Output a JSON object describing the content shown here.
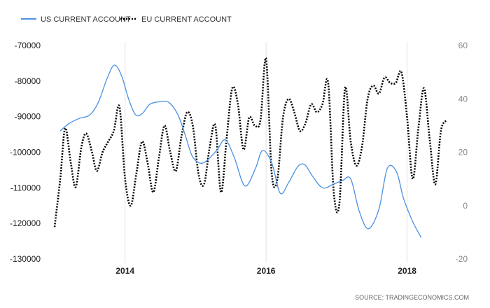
{
  "chart_data": {
    "type": "line",
    "legend_position": "top-left",
    "grid": {
      "horizontal": false,
      "vertical": true
    },
    "source": "SOURCE: TRADINGECONOMICS.COM",
    "x_axis": {
      "range": [
        2013.0,
        2018.6
      ],
      "ticks": [
        {
          "value": 2014,
          "label": "2014"
        },
        {
          "value": 2016,
          "label": "2016"
        },
        {
          "value": 2018,
          "label": "2018"
        }
      ],
      "gridlines": [
        2014,
        2016,
        2018
      ]
    },
    "y_left": {
      "range": [
        -130000,
        -70000
      ],
      "ticks": [
        {
          "value": -70000,
          "label": "-70000"
        },
        {
          "value": -80000,
          "label": "-80000"
        },
        {
          "value": -90000,
          "label": "-90000"
        },
        {
          "value": -100000,
          "label": "-100000"
        },
        {
          "value": -110000,
          "label": "-110000"
        },
        {
          "value": -120000,
          "label": "-120000"
        },
        {
          "value": -130000,
          "label": "-130000"
        }
      ]
    },
    "y_right": {
      "range": [
        -20,
        60
      ],
      "ticks": [
        {
          "value": 60,
          "label": "60"
        },
        {
          "value": 40,
          "label": "40"
        },
        {
          "value": 20,
          "label": "20"
        },
        {
          "value": 0,
          "label": "0"
        },
        {
          "value": -20,
          "label": "-20"
        }
      ]
    },
    "series": [
      {
        "name": "US CURRENT ACCOUNT",
        "axis": "left",
        "color": "#4a90e2",
        "style": "solid",
        "x": [
          2013.08,
          2013.2,
          2013.35,
          2013.5,
          2013.62,
          2013.75,
          2013.85,
          2013.95,
          2014.05,
          2014.15,
          2014.25,
          2014.35,
          2014.5,
          2014.62,
          2014.75,
          2014.85,
          2014.95,
          2015.05,
          2015.15,
          2015.3,
          2015.42,
          2015.55,
          2015.7,
          2015.85,
          2015.95,
          2016.08,
          2016.2,
          2016.32,
          2016.45,
          2016.55,
          2016.65,
          2016.8,
          2016.95,
          2017.08,
          2017.2,
          2017.32,
          2017.45,
          2017.6,
          2017.72,
          2017.85,
          2017.95,
          2018.08,
          2018.2
        ],
        "values": [
          -94000,
          -92000,
          -90500,
          -89500,
          -86000,
          -79000,
          -75500,
          -78500,
          -85000,
          -89500,
          -89000,
          -86500,
          -85800,
          -86000,
          -89500,
          -95000,
          -101000,
          -103000,
          -102500,
          -99500,
          -96500,
          -101500,
          -109500,
          -104500,
          -99500,
          -103000,
          -111500,
          -108500,
          -104000,
          -103500,
          -106500,
          -110000,
          -109000,
          -108000,
          -107500,
          -116500,
          -121500,
          -116000,
          -104500,
          -105500,
          -113000,
          -119500,
          -124000
        ]
      },
      {
        "name": "EU CURRENT ACCOUNT",
        "axis": "right",
        "color": "#000000",
        "style": "dotted",
        "x": [
          2013.0,
          2013.08,
          2013.15,
          2013.23,
          2013.3,
          2013.38,
          2013.45,
          2013.53,
          2013.6,
          2013.68,
          2013.76,
          2013.84,
          2013.92,
          2014.0,
          2014.08,
          2014.16,
          2014.24,
          2014.32,
          2014.4,
          2014.48,
          2014.56,
          2014.64,
          2014.72,
          2014.8,
          2014.88,
          2014.96,
          2015.04,
          2015.12,
          2015.2,
          2015.28,
          2015.36,
          2015.44,
          2015.52,
          2015.6,
          2015.68,
          2015.76,
          2015.84,
          2015.92,
          2016.0,
          2016.08,
          2016.16,
          2016.24,
          2016.32,
          2016.4,
          2016.48,
          2016.56,
          2016.64,
          2016.72,
          2016.8,
          2016.88,
          2016.96,
          2017.04,
          2017.12,
          2017.2,
          2017.28,
          2017.36,
          2017.44,
          2017.52,
          2017.6,
          2017.68,
          2017.76,
          2017.84,
          2017.92,
          2018.0,
          2018.08,
          2018.16,
          2018.24,
          2018.32,
          2018.4,
          2018.48,
          2018.56
        ],
        "values": [
          -8,
          10,
          29,
          16,
          7,
          22,
          27,
          20,
          13,
          20,
          24,
          28,
          37,
          10,
          0,
          12,
          24,
          16,
          5,
          18,
          30,
          20,
          13,
          26,
          35,
          30,
          12,
          8,
          22,
          30,
          5,
          25,
          44,
          38,
          21,
          33,
          30,
          32,
          55,
          12,
          10,
          33,
          40,
          35,
          28,
          31,
          38,
          35,
          38,
          46,
          5,
          1,
          44,
          24,
          15,
          22,
          40,
          45,
          42,
          48,
          46,
          46,
          50,
          33,
          10,
          29,
          44,
          25,
          8,
          28,
          32
        ]
      }
    ]
  }
}
